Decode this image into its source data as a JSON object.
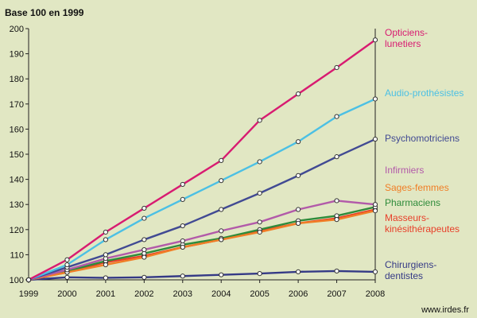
{
  "chart_data": {
    "type": "line",
    "title": "Base 100 en 1999",
    "xlabel": "",
    "ylabel": "",
    "x": [
      1999,
      2000,
      2001,
      2002,
      2003,
      2004,
      2005,
      2006,
      2007,
      2008
    ],
    "ylim": [
      100,
      200
    ],
    "yticks": [
      100,
      110,
      120,
      130,
      140,
      150,
      160,
      170,
      180,
      190,
      200
    ],
    "grid": false,
    "source": "www.irdes.fr",
    "series": [
      {
        "name": "Opticiens-lunetiers",
        "label_lines": [
          "Opticiens-",
          "lunetiers"
        ],
        "color": "#d81b71",
        "values": [
          100,
          108,
          119,
          128.5,
          138,
          147.5,
          163.5,
          174,
          184.5,
          195.5
        ]
      },
      {
        "name": "Audio-prothésistes",
        "label_lines": [
          "Audio-prothésistes"
        ],
        "color": "#4cc0e4",
        "values": [
          100,
          106,
          116,
          124.5,
          132,
          139.5,
          147,
          155,
          165,
          172
        ]
      },
      {
        "name": "Psychomotriciens",
        "label_lines": [
          "Psychomotriciens"
        ],
        "color": "#414a93",
        "values": [
          100,
          105,
          110,
          116,
          121.5,
          128,
          134.5,
          141.5,
          149,
          156
        ]
      },
      {
        "name": "Infirmiers",
        "label_lines": [
          "Infirmiers"
        ],
        "color": "#b25aa9",
        "values": [
          100,
          104,
          108.5,
          112,
          115.5,
          119.5,
          123,
          128,
          131.5,
          130
        ]
      },
      {
        "name": "Sages-femmes",
        "label_lines": [
          "Sages-femmes"
        ],
        "color": "#f07e26",
        "values": [
          100,
          103,
          106,
          109,
          113,
          116,
          119,
          122.5,
          124,
          127.5
        ]
      },
      {
        "name": "Pharmaciens",
        "label_lines": [
          "Pharmaciens"
        ],
        "color": "#2e8b3a",
        "values": [
          100,
          103.5,
          107.5,
          110.5,
          114,
          116.5,
          120,
          123.5,
          125.5,
          129
        ]
      },
      {
        "name": "Masseurs-kinésithérapeutes",
        "label_lines": [
          "Masseurs-",
          "kinésithérapeutes"
        ],
        "color": "#e8402a",
        "values": [
          100,
          103,
          107,
          109.5,
          113,
          116,
          119.5,
          122.5,
          124.5,
          128
        ]
      },
      {
        "name": "Chirurgiens-dentistes",
        "label_lines": [
          "Chirurgiens-",
          "dentistes"
        ],
        "color": "#353a86",
        "values": [
          100,
          101,
          100.8,
          101,
          101.5,
          102,
          102.5,
          103.2,
          103.5,
          103.2
        ]
      }
    ]
  }
}
